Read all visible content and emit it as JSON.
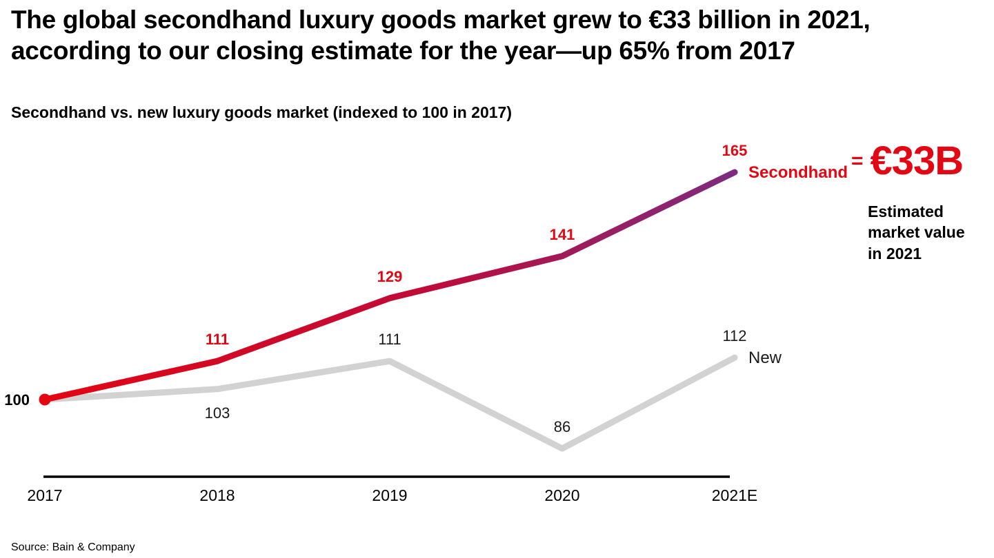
{
  "title": "The global secondhand luxury goods market grew to €33 billion in 2021, according to our closing estimate for the year—up 65% from 2017",
  "subtitle": "Secondhand vs. new luxury goods market (indexed to 100 in 2017)",
  "source": "Source: Bain & Company",
  "annotation": {
    "equals": "=",
    "value": "€33B",
    "caption": "Estimated\nmarket value\nin 2021"
  },
  "colors": {
    "secondhand_red": "#e30613",
    "secondhand_gradient_end": "#7d2b80",
    "new_gray": "#d2d2d2",
    "text_dark": "#1a1a1a"
  },
  "chart_data": {
    "type": "line",
    "title": "Secondhand vs. new luxury goods market (indexed to 100 in 2017)",
    "categories": [
      "2017",
      "2018",
      "2019",
      "2020",
      "2021E"
    ],
    "series": [
      {
        "name": "New",
        "values": [
          100,
          103,
          111,
          86,
          112
        ],
        "color": "#d2d2d2",
        "label_color": "#1a1a1a",
        "labels_bold": false,
        "name_bold": false,
        "label_positions": [
          "none",
          "below",
          "above",
          "above",
          "above"
        ]
      },
      {
        "name": "Secondhand",
        "values": [
          100,
          111,
          129,
          141,
          165
        ],
        "color": "#e30613",
        "color_end": "#7d2b80",
        "label_color": "#e30613",
        "labels_bold": true,
        "name_bold": true,
        "start_dot": true,
        "label_positions": [
          "left",
          "above",
          "above",
          "above",
          "above"
        ]
      }
    ],
    "ylim": [
      80,
      170
    ],
    "index_base": 100,
    "grid": false,
    "legend_position": "right-of-line",
    "annotation_value": "€33B",
    "annotation_caption": "Estimated market value in 2021"
  }
}
